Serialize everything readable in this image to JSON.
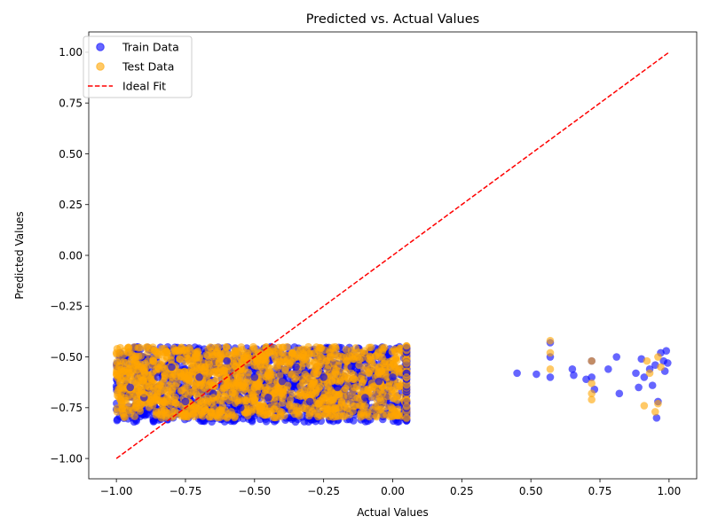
{
  "chart_data": {
    "type": "scatter",
    "title": "Predicted vs. Actual Values",
    "xlabel": "Actual Values",
    "ylabel": "Predicted Values",
    "xlim": [
      -1.1,
      1.1
    ],
    "ylim": [
      -1.1,
      1.1
    ],
    "xticks": [
      -1.0,
      -0.75,
      -0.5,
      -0.25,
      0.0,
      0.25,
      0.5,
      0.75,
      1.0
    ],
    "yticks": [
      -1.0,
      -0.75,
      -0.5,
      -0.25,
      0.0,
      0.25,
      0.5,
      0.75,
      1.0
    ],
    "xtick_labels": [
      "−1.00",
      "−0.75",
      "−0.50",
      "−0.25",
      "0.00",
      "0.25",
      "0.50",
      "0.75",
      "1.00"
    ],
    "ytick_labels": [
      "−1.00",
      "−0.75",
      "−0.50",
      "−0.25",
      "0.00",
      "0.25",
      "0.50",
      "0.75",
      "1.00"
    ],
    "grid": false,
    "legend_position": "top-left",
    "colors": {
      "train": "#0000ff",
      "test": "#ffa500",
      "ideal": "#ff0000"
    },
    "series": [
      {
        "name": "Train Data",
        "kind": "scatter",
        "points": [
          [
            -0.95,
            -0.65
          ],
          [
            -0.9,
            -0.7
          ],
          [
            -0.85,
            -0.6
          ],
          [
            -0.8,
            -0.55
          ],
          [
            -0.75,
            -0.72
          ],
          [
            -0.7,
            -0.6
          ],
          [
            -0.65,
            -0.68
          ],
          [
            -0.6,
            -0.52
          ],
          [
            -0.55,
            -0.75
          ],
          [
            -0.5,
            -0.6
          ],
          [
            -0.45,
            -0.7
          ],
          [
            -0.4,
            -0.62
          ],
          [
            -0.35,
            -0.55
          ],
          [
            -0.3,
            -0.72
          ],
          [
            -0.25,
            -0.6
          ],
          [
            -0.2,
            -0.65
          ],
          [
            -0.15,
            -0.55
          ],
          [
            -0.1,
            -0.7
          ],
          [
            -0.05,
            -0.62
          ],
          [
            0.0,
            -0.6
          ],
          [
            0.05,
            -0.58
          ],
          [
            0.45,
            -0.58
          ],
          [
            0.52,
            -0.585
          ],
          [
            0.57,
            -0.43
          ],
          [
            0.57,
            -0.5
          ],
          [
            0.57,
            -0.6
          ],
          [
            0.65,
            -0.56
          ],
          [
            0.655,
            -0.59
          ],
          [
            0.7,
            -0.61
          ],
          [
            0.72,
            -0.52
          ],
          [
            0.72,
            -0.6
          ],
          [
            0.73,
            -0.66
          ],
          [
            0.78,
            -0.56
          ],
          [
            0.81,
            -0.5
          ],
          [
            0.82,
            -0.68
          ],
          [
            0.88,
            -0.58
          ],
          [
            0.89,
            -0.65
          ],
          [
            0.9,
            -0.51
          ],
          [
            0.91,
            -0.6
          ],
          [
            0.93,
            -0.56
          ],
          [
            0.94,
            -0.64
          ],
          [
            0.95,
            -0.54
          ],
          [
            0.955,
            -0.8
          ],
          [
            0.96,
            -0.72
          ],
          [
            0.97,
            -0.48
          ],
          [
            0.98,
            -0.52
          ],
          [
            0.985,
            -0.57
          ],
          [
            0.99,
            -0.47
          ],
          [
            0.995,
            -0.53
          ]
        ]
      },
      {
        "name": "Test Data",
        "kind": "scatter",
        "points": [
          [
            -0.95,
            -0.6
          ],
          [
            -0.9,
            -0.68
          ],
          [
            -0.85,
            -0.55
          ],
          [
            -0.8,
            -0.72
          ],
          [
            -0.75,
            -0.6
          ],
          [
            -0.7,
            -0.5
          ],
          [
            -0.65,
            -0.7
          ],
          [
            -0.6,
            -0.62
          ],
          [
            -0.55,
            -0.55
          ],
          [
            -0.5,
            -0.65
          ],
          [
            -0.45,
            -0.58
          ],
          [
            -0.4,
            -0.68
          ],
          [
            -0.35,
            -0.6
          ],
          [
            -0.3,
            -0.52
          ],
          [
            -0.25,
            -0.7
          ],
          [
            -0.2,
            -0.62
          ],
          [
            -0.15,
            -0.58
          ],
          [
            -0.1,
            -0.66
          ],
          [
            -0.05,
            -0.55
          ],
          [
            0.0,
            -0.7
          ],
          [
            0.05,
            -0.6
          ],
          [
            0.57,
            -0.42
          ],
          [
            0.57,
            -0.48
          ],
          [
            0.57,
            -0.56
          ],
          [
            0.72,
            -0.52
          ],
          [
            0.72,
            -0.68
          ],
          [
            0.72,
            -0.71
          ],
          [
            0.72,
            -0.63
          ],
          [
            0.91,
            -0.74
          ],
          [
            0.92,
            -0.52
          ],
          [
            0.93,
            -0.58
          ],
          [
            0.95,
            -0.77
          ],
          [
            0.96,
            -0.73
          ],
          [
            0.96,
            -0.5
          ],
          [
            0.97,
            -0.55
          ]
        ]
      },
      {
        "name": "Ideal Fit",
        "kind": "line",
        "x": [
          -1.0,
          1.0
        ],
        "y": [
          -1.0,
          1.0
        ]
      }
    ]
  }
}
